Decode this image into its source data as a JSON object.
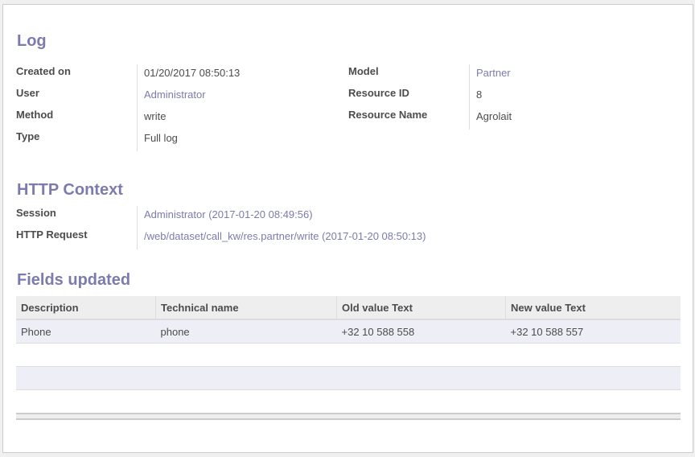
{
  "log": {
    "title": "Log",
    "left": [
      {
        "label": "Created on",
        "value": "01/20/2017 08:50:13",
        "link": false
      },
      {
        "label": "User",
        "value": "Administrator",
        "link": true
      },
      {
        "label": "Method",
        "value": "write",
        "link": false
      },
      {
        "label": "Type",
        "value": "Full log",
        "link": false
      }
    ],
    "right": [
      {
        "label": "Model",
        "value": "Partner",
        "link": true
      },
      {
        "label": "Resource ID",
        "value": "8",
        "link": false
      },
      {
        "label": "Resource Name",
        "value": "Agrolait",
        "link": false
      }
    ]
  },
  "http": {
    "title": "HTTP Context",
    "session_label": "Session",
    "session_value": "Administrator (2017-01-20 08:49:56)",
    "request_label": "HTTP Request",
    "request_value": "/web/dataset/call_kw/res.partner/write (2017-01-20 08:50:13)"
  },
  "fields": {
    "title": "Fields updated",
    "columns": [
      "Description",
      "Technical name",
      "Old value Text",
      "New value Text"
    ],
    "rows": [
      [
        "Phone",
        "phone",
        "+32 10 588 558",
        "+32 10 588 557"
      ]
    ]
  },
  "colors": {
    "accent": "#7c7bad",
    "text": "#4c4c4c"
  }
}
